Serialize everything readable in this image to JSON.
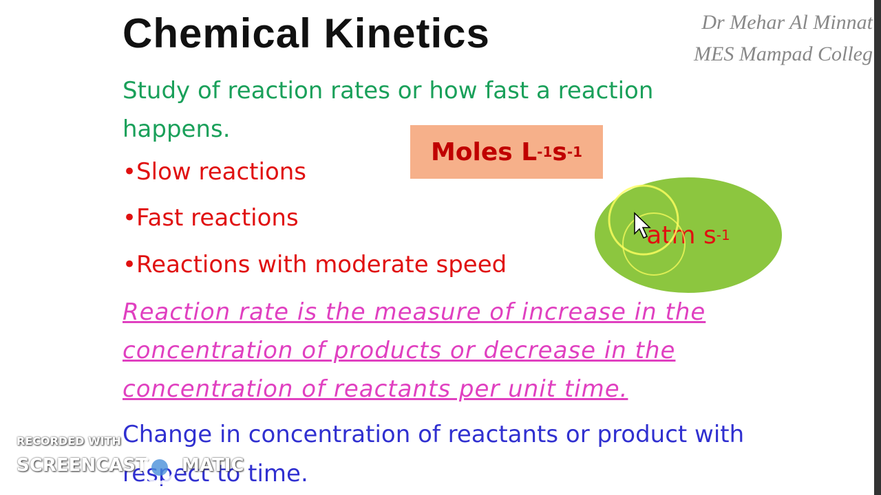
{
  "slide": {
    "title": "Chemical Kinetics",
    "author": [
      "Dr Mehar Al Minnat",
      "MES Mampad Colleg"
    ],
    "definition": "Study of reaction rates or how fast a reaction happens.",
    "bullets": [
      "•Slow reactions",
      "•Fast reactions",
      "•Reactions with moderate speed"
    ],
    "unit_box": [
      "Moles L",
      "-1",
      "s",
      "-1"
    ],
    "unit_ellipse": [
      "atm s",
      "-1"
    ],
    "rate_statement": "Reaction rate is the measure of increase in the concentration of products or decrease in the concentration of reactants per unit time.",
    "change_statement": "Change in concentration of reactants or product with respect to time."
  },
  "watermark": [
    "RECORDED WITH",
    "SCREENCAST",
    "MATIC"
  ]
}
